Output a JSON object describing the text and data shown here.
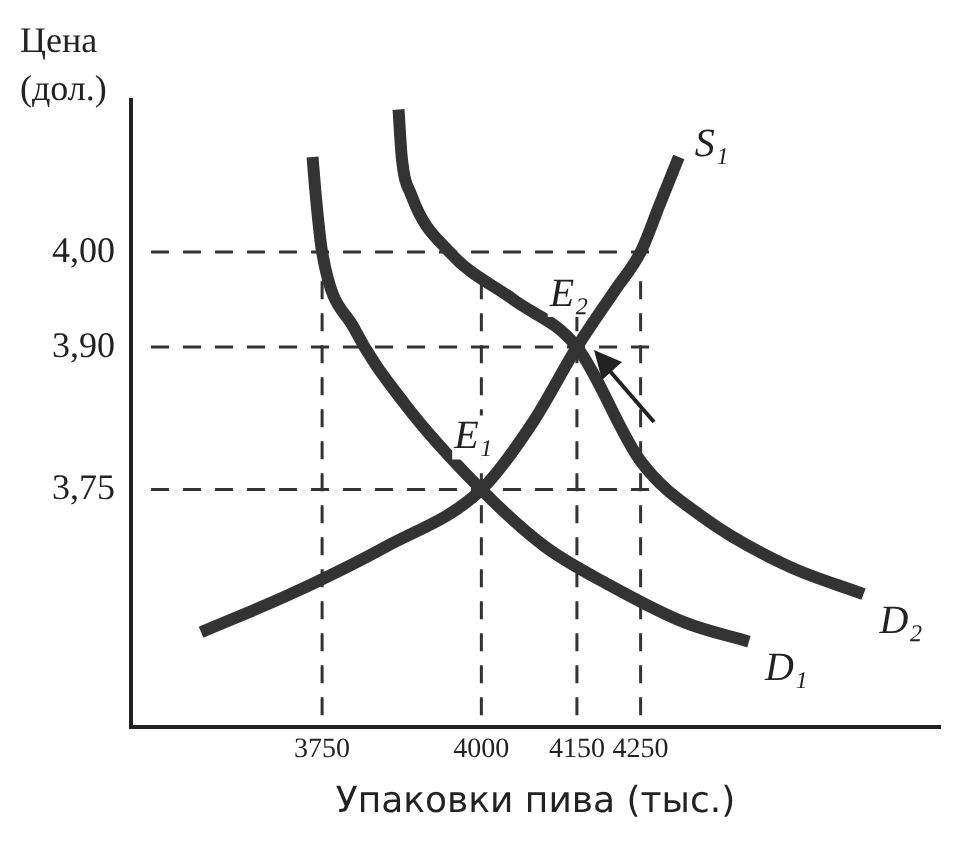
{
  "chart_data": {
    "type": "line",
    "xlabel": "Упаковки пива (тыс.)",
    "ylabel": "Цена (дол.)",
    "xlim": [
      3450,
      4720
    ],
    "ylim": [
      3.5,
      4.16
    ],
    "xticks": [
      3750,
      4000,
      4150,
      4250
    ],
    "yticks": [
      {
        "value": 4,
        "label": "4,00"
      },
      {
        "value": 3.9,
        "label": "3,90"
      },
      {
        "value": 3.75,
        "label": "3,75"
      }
    ],
    "grid": false,
    "legend": false,
    "marker": "none",
    "line_style": "solid",
    "series": [
      {
        "color": "#333333",
        "x": [
          3560,
          3700,
          3850,
          4000,
          4080,
          4150,
          4210,
          4250,
          4280,
          4310
        ],
        "values": [
          3.6,
          3.64,
          3.69,
          3.75,
          3.82,
          3.9,
          3.96,
          4.0,
          4.05,
          4.1
        ]
      },
      {
        "color": "#333333",
        "x": [
          3735,
          3740,
          3750,
          3800,
          3880,
          4000,
          4100,
          4200,
          4320,
          4420
        ],
        "values": [
          4.1,
          4.06,
          4.0,
          3.92,
          3.84,
          3.75,
          3.69,
          3.65,
          3.61,
          3.59
        ]
      },
      {
        "color": "#333333",
        "x": [
          3870,
          3875,
          3890,
          3950,
          4050,
          4150,
          4250,
          4350,
          4480,
          4600
        ],
        "values": [
          4.15,
          4.1,
          4.06,
          4.0,
          3.95,
          3.9,
          3.78,
          3.72,
          3.67,
          3.64
        ]
      }
    ],
    "ref_lines": [
      {
        "axis": "y",
        "value": 4.0,
        "line_style": "dashed",
        "color": "#333333"
      },
      {
        "axis": "y",
        "value": 3.9,
        "line_style": "dashed",
        "color": "#333333"
      },
      {
        "axis": "y",
        "value": 3.75,
        "line_style": "dashed",
        "color": "#333333"
      },
      {
        "axis": "x",
        "value": 3750,
        "line_style": "dashed",
        "color": "#333333"
      },
      {
        "axis": "x",
        "value": 4000,
        "line_style": "dashed",
        "color": "#333333"
      },
      {
        "axis": "x",
        "value": 4150,
        "line_style": "dashed",
        "color": "#333333"
      },
      {
        "axis": "x",
        "value": 4250,
        "line_style": "dashed",
        "color": "#333333"
      }
    ],
    "annotations": [
      {
        "text": "S₁",
        "x": 4310,
        "y": 4.1
      },
      {
        "text": "D₁",
        "x": 4420,
        "y": 3.59
      },
      {
        "text": "D₂",
        "x": 4600,
        "y": 3.64
      },
      {
        "text": "E₁",
        "x": 4000,
        "y": 3.75
      },
      {
        "text": "E₂",
        "x": 4150,
        "y": 3.9
      }
    ]
  }
}
